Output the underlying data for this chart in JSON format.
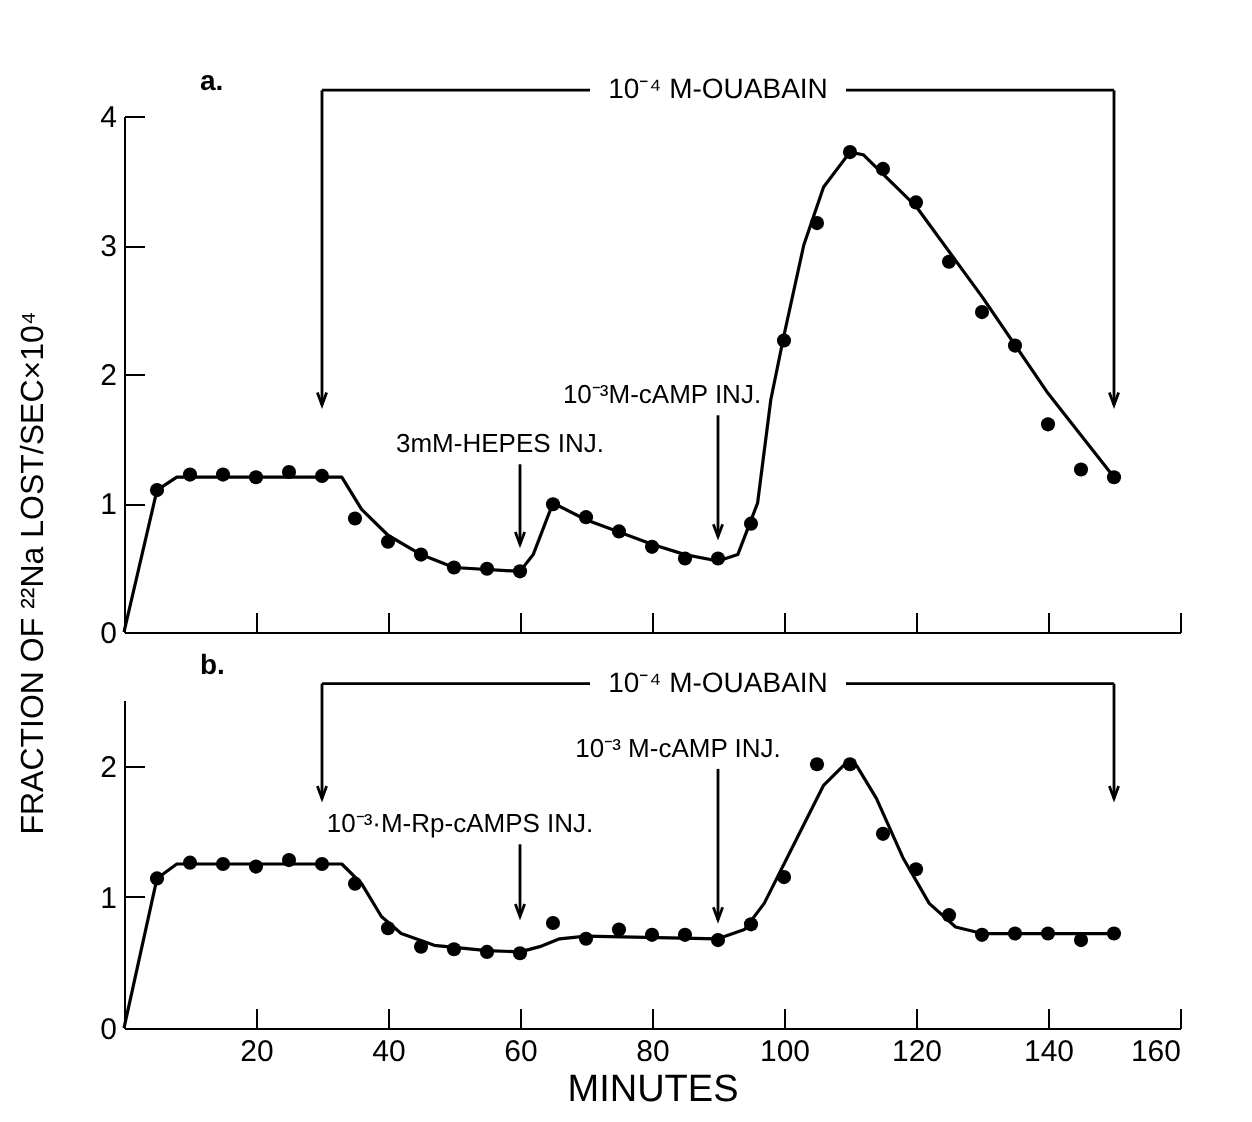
{
  "chart_data": [
    {
      "type": "scatter",
      "ylabel": "FRACTION OF ²²Na LOST/SEC×10⁴",
      "xlim": [
        0,
        160
      ],
      "xticks": [
        20,
        40,
        60,
        80,
        100,
        120,
        140,
        160
      ],
      "ylim": [
        0,
        4
      ],
      "yticks": [
        0,
        1,
        2,
        3,
        4
      ],
      "tick_labels": "y",
      "series": [
        {
          "type": "scatter",
          "marker": "circle",
          "color": "#000000",
          "x": [
            5,
            10,
            15,
            20,
            25,
            30,
            35,
            40,
            45,
            50,
            55,
            60,
            65,
            70,
            75,
            80,
            85,
            90,
            95,
            100,
            105,
            110,
            115,
            120,
            125,
            130,
            135,
            140,
            145,
            150
          ],
          "values": [
            1.1,
            1.22,
            1.22,
            1.2,
            1.24,
            1.21,
            0.88,
            0.7,
            0.6,
            0.5,
            0.49,
            0.47,
            0.99,
            0.89,
            0.78,
            0.66,
            0.57,
            0.57,
            0.84,
            2.26,
            3.17,
            3.72,
            3.59,
            3.33,
            2.87,
            2.48,
            2.22,
            1.61,
            1.26,
            1.2
          ]
        },
        {
          "type": "line",
          "marker": "none",
          "color": "#000000",
          "x": [
            0,
            5,
            8,
            33,
            36,
            40,
            45,
            50,
            60,
            62,
            65,
            70,
            80,
            85,
            90,
            93,
            96,
            98,
            100,
            103,
            106,
            110,
            112,
            120,
            130,
            140,
            150
          ],
          "values": [
            0,
            1.1,
            1.2,
            1.2,
            0.95,
            0.75,
            0.6,
            0.5,
            0.47,
            0.6,
            1.0,
            0.87,
            0.68,
            0.6,
            0.55,
            0.6,
            1.0,
            1.8,
            2.3,
            3.0,
            3.45,
            3.72,
            3.7,
            3.3,
            2.6,
            1.85,
            1.2
          ]
        }
      ],
      "annotations": [
        "a."
      ],
      "ref_lines": [
        {
          "axis": "x",
          "value": 30,
          "label": "10⁻⁴ M-OUABAIN"
        },
        {
          "axis": "x",
          "value": 150
        },
        {
          "axis": "x",
          "value": 60,
          "label": "3mM-HEPES INJ."
        },
        {
          "axis": "x",
          "value": 90,
          "label": "10⁻³M-cAMP INJ."
        }
      ]
    },
    {
      "type": "scatter",
      "xlabel": "MINUTES",
      "xlim": [
        0,
        160
      ],
      "xticks": [
        20,
        40,
        60,
        80,
        100,
        120,
        140,
        160
      ],
      "ylim": [
        0,
        2.5
      ],
      "yticks": [
        0,
        1,
        2
      ],
      "series": [
        {
          "type": "scatter",
          "marker": "circle",
          "color": "#000000",
          "x": [
            5,
            10,
            15,
            20,
            25,
            30,
            35,
            40,
            45,
            50,
            55,
            60,
            65,
            70,
            75,
            80,
            85,
            90,
            95,
            100,
            105,
            110,
            115,
            120,
            125,
            130,
            135,
            140,
            145,
            150
          ],
          "values": [
            1.14,
            1.26,
            1.25,
            1.23,
            1.28,
            1.25,
            1.1,
            0.76,
            0.62,
            0.6,
            0.58,
            0.57,
            0.8,
            0.68,
            0.75,
            0.71,
            0.71,
            0.67,
            0.79,
            1.15,
            2.01,
            2.01,
            1.48,
            1.21,
            0.86,
            0.71,
            0.72,
            0.72,
            0.67,
            0.72
          ]
        },
        {
          "type": "line",
          "marker": "none",
          "color": "#000000",
          "x": [
            0,
            5,
            8,
            33,
            36,
            39,
            42,
            47,
            55,
            60,
            63,
            66,
            70,
            90,
            94,
            97,
            102,
            106,
            109,
            111,
            114,
            118,
            122,
            126,
            130,
            150
          ],
          "values": [
            0,
            1.14,
            1.25,
            1.25,
            1.1,
            0.85,
            0.72,
            0.63,
            0.59,
            0.58,
            0.62,
            0.68,
            0.7,
            0.68,
            0.75,
            0.95,
            1.45,
            1.85,
            2.0,
            2.0,
            1.75,
            1.3,
            0.95,
            0.77,
            0.72,
            0.72
          ]
        }
      ],
      "annotations": [
        "b."
      ],
      "ref_lines": [
        {
          "axis": "x",
          "value": 30,
          "label": "10⁻⁴ M-OUABAIN"
        },
        {
          "axis": "x",
          "value": 150
        },
        {
          "axis": "x",
          "value": 60,
          "label": "10⁻³·M-Rp-cAMPS INJ."
        },
        {
          "axis": "x",
          "value": 90,
          "label": "10⁻³ M-cAMP INJ."
        }
      ]
    }
  ]
}
